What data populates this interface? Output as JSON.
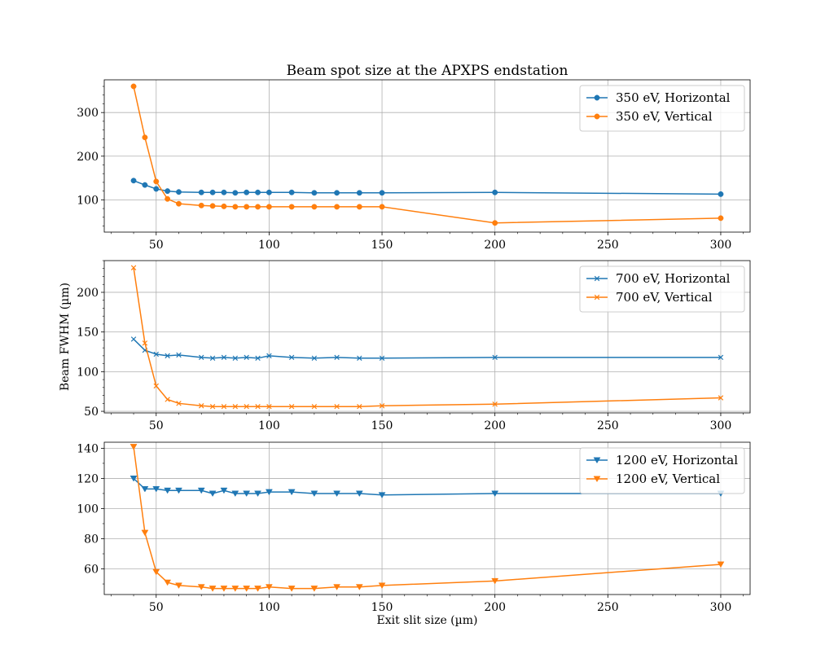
{
  "chart_data": [
    {
      "type": "line",
      "title": "Beam spot size at the APXPS endstation",
      "xlabel": "",
      "ylabel": "",
      "xlim": [
        27,
        313
      ],
      "ylim": [
        26,
        375
      ],
      "xticks": [
        50,
        100,
        150,
        200,
        250,
        300
      ],
      "yticks": [
        100,
        200,
        300
      ],
      "y_minor_step": 20,
      "grid": true,
      "legend": "upper-right",
      "marker": "circle",
      "x": [
        40,
        45,
        50,
        55,
        60,
        70,
        75,
        80,
        85,
        90,
        95,
        100,
        110,
        120,
        130,
        140,
        150,
        200,
        300
      ],
      "series": [
        {
          "name": "350 eV, Horizontal",
          "color": "#1f77b4",
          "values": [
            144,
            134,
            125,
            120,
            118,
            117,
            117,
            117,
            116,
            117,
            117,
            117,
            117,
            116,
            116,
            116,
            116,
            117,
            113
          ]
        },
        {
          "name": "350 eV, Vertical",
          "color": "#ff7f0e",
          "values": [
            360,
            243,
            142,
            102,
            91,
            87,
            86,
            85,
            84,
            84,
            84,
            84,
            84,
            84,
            84,
            84,
            84,
            47,
            58
          ]
        }
      ]
    },
    {
      "type": "line",
      "title": "",
      "xlabel": "",
      "ylabel": "Beam FWHM (µm)",
      "xlim": [
        27,
        313
      ],
      "ylim": [
        48,
        240
      ],
      "xticks": [
        50,
        100,
        150,
        200,
        250,
        300
      ],
      "yticks": [
        50,
        100,
        150,
        200
      ],
      "y_minor_step": 10,
      "grid": true,
      "legend": "upper-right",
      "marker": "x",
      "x": [
        40,
        45,
        50,
        55,
        60,
        70,
        75,
        80,
        85,
        90,
        95,
        100,
        110,
        120,
        130,
        140,
        150,
        200,
        300
      ],
      "series": [
        {
          "name": "700 eV, Horizontal",
          "color": "#1f77b4",
          "values": [
            141,
            127,
            122,
            120,
            121,
            118,
            117,
            118,
            117,
            118,
            117,
            120,
            118,
            117,
            118,
            117,
            117,
            118,
            118
          ]
        },
        {
          "name": "700 eV, Vertical",
          "color": "#ff7f0e",
          "values": [
            231,
            136,
            82,
            65,
            60,
            57,
            56,
            56,
            56,
            56,
            56,
            56,
            56,
            56,
            56,
            56,
            57,
            59,
            67
          ]
        }
      ]
    },
    {
      "type": "line",
      "title": "",
      "xlabel": "Exit slit size (µm)",
      "ylabel": "",
      "xlim": [
        27,
        313
      ],
      "ylim": [
        43,
        144
      ],
      "xticks": [
        50,
        100,
        150,
        200,
        250,
        300
      ],
      "yticks": [
        60,
        80,
        100,
        120,
        140
      ],
      "y_minor_step": 10,
      "grid": true,
      "legend": "upper-right",
      "marker": "triangle-down",
      "x": [
        40,
        45,
        50,
        55,
        60,
        70,
        75,
        80,
        85,
        90,
        95,
        100,
        110,
        120,
        130,
        140,
        150,
        200,
        300
      ],
      "series": [
        {
          "name": "1200 eV, Horizontal",
          "color": "#1f77b4",
          "values": [
            120,
            113,
            113,
            112,
            112,
            112,
            110,
            112,
            110,
            110,
            110,
            111,
            111,
            110,
            110,
            110,
            109,
            110,
            110
          ]
        },
        {
          "name": "1200 eV, Vertical",
          "color": "#ff7f0e",
          "values": [
            141,
            84,
            58,
            51,
            49,
            48,
            47,
            47,
            47,
            47,
            47,
            48,
            47,
            47,
            48,
            48,
            49,
            52,
            63
          ]
        }
      ]
    }
  ]
}
